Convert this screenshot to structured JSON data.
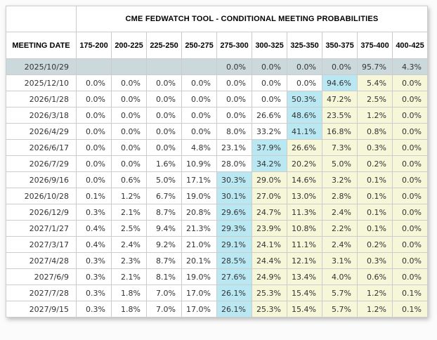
{
  "table": {
    "title": "CME FEDWATCH TOOL - CONDITIONAL MEETING PROBABILITIES",
    "date_column_header": "MEETING DATE",
    "rate_columns": [
      "175-200",
      "200-225",
      "225-250",
      "250-275",
      "275-300",
      "300-325",
      "325-350",
      "350-375",
      "375-400",
      "400-425"
    ],
    "rows": [
      {
        "date": "2025/10/29",
        "style": "current",
        "blue_index": null,
        "values": [
          "",
          "",
          "",
          "",
          "0.0%",
          "0.0%",
          "0.0%",
          "0.0%",
          "95.7%",
          "4.3%"
        ]
      },
      {
        "date": "2025/12/10",
        "blue_index": 7,
        "values": [
          "0.0%",
          "0.0%",
          "0.0%",
          "0.0%",
          "0.0%",
          "0.0%",
          "0.0%",
          "94.6%",
          "5.4%",
          "0.0%"
        ]
      },
      {
        "date": "2026/1/28",
        "blue_index": 6,
        "values": [
          "0.0%",
          "0.0%",
          "0.0%",
          "0.0%",
          "0.0%",
          "0.0%",
          "50.3%",
          "47.2%",
          "2.5%",
          "0.0%"
        ]
      },
      {
        "date": "2026/3/18",
        "blue_index": 6,
        "values": [
          "0.0%",
          "0.0%",
          "0.0%",
          "0.0%",
          "0.0%",
          "26.6%",
          "48.6%",
          "23.5%",
          "1.2%",
          "0.0%"
        ]
      },
      {
        "date": "2026/4/29",
        "blue_index": 6,
        "values": [
          "0.0%",
          "0.0%",
          "0.0%",
          "0.0%",
          "8.0%",
          "33.2%",
          "41.1%",
          "16.8%",
          "0.8%",
          "0.0%"
        ]
      },
      {
        "date": "2026/6/17",
        "blue_index": 5,
        "values": [
          "0.0%",
          "0.0%",
          "0.0%",
          "4.8%",
          "23.1%",
          "37.9%",
          "26.6%",
          "7.3%",
          "0.3%",
          "0.0%"
        ]
      },
      {
        "date": "2026/7/29",
        "blue_index": 5,
        "values": [
          "0.0%",
          "0.0%",
          "1.6%",
          "10.9%",
          "28.0%",
          "34.2%",
          "20.2%",
          "5.0%",
          "0.2%",
          "0.0%"
        ]
      },
      {
        "date": "2026/9/16",
        "blue_index": 4,
        "values": [
          "0.0%",
          "0.6%",
          "5.0%",
          "17.1%",
          "30.3%",
          "29.0%",
          "14.6%",
          "3.2%",
          "0.1%",
          "0.0%"
        ]
      },
      {
        "date": "2026/10/28",
        "blue_index": 4,
        "values": [
          "0.1%",
          "1.2%",
          "6.7%",
          "19.0%",
          "30.1%",
          "27.0%",
          "13.0%",
          "2.8%",
          "0.1%",
          "0.0%"
        ]
      },
      {
        "date": "2026/12/9",
        "blue_index": 4,
        "values": [
          "0.3%",
          "2.1%",
          "8.7%",
          "20.8%",
          "29.6%",
          "24.7%",
          "11.3%",
          "2.4%",
          "0.1%",
          "0.0%"
        ]
      },
      {
        "date": "2027/1/27",
        "blue_index": 4,
        "values": [
          "0.4%",
          "2.5%",
          "9.4%",
          "21.3%",
          "29.3%",
          "23.9%",
          "10.8%",
          "2.2%",
          "0.1%",
          "0.0%"
        ]
      },
      {
        "date": "2027/3/17",
        "blue_index": 4,
        "values": [
          "0.4%",
          "2.4%",
          "9.2%",
          "21.0%",
          "29.1%",
          "24.1%",
          "11.1%",
          "2.4%",
          "0.2%",
          "0.0%"
        ]
      },
      {
        "date": "2027/4/28",
        "blue_index": 4,
        "values": [
          "0.3%",
          "2.3%",
          "8.7%",
          "20.1%",
          "28.5%",
          "24.4%",
          "12.1%",
          "3.1%",
          "0.3%",
          "0.0%"
        ]
      },
      {
        "date": "2027/6/9",
        "blue_index": 4,
        "values": [
          "0.3%",
          "2.1%",
          "8.1%",
          "19.0%",
          "27.6%",
          "24.9%",
          "13.4%",
          "4.0%",
          "0.6%",
          "0.0%"
        ]
      },
      {
        "date": "2027/7/28",
        "blue_index": 4,
        "values": [
          "0.3%",
          "1.8%",
          "7.0%",
          "17.0%",
          "26.1%",
          "25.3%",
          "15.4%",
          "5.7%",
          "1.2%",
          "0.1%"
        ]
      },
      {
        "date": "2027/9/15",
        "blue_index": 4,
        "values": [
          "0.3%",
          "1.8%",
          "7.0%",
          "17.0%",
          "26.1%",
          "25.3%",
          "15.4%",
          "5.7%",
          "1.2%",
          "0.1%"
        ]
      }
    ],
    "colors": {
      "highlight_blue": "#b9e8f3",
      "highlight_yellow": "#f6f6d9",
      "current_row_gray": "#ccd9dc",
      "grid_line": "#cccccc",
      "header_text": "#000000",
      "cell_text": "#333333"
    }
  }
}
